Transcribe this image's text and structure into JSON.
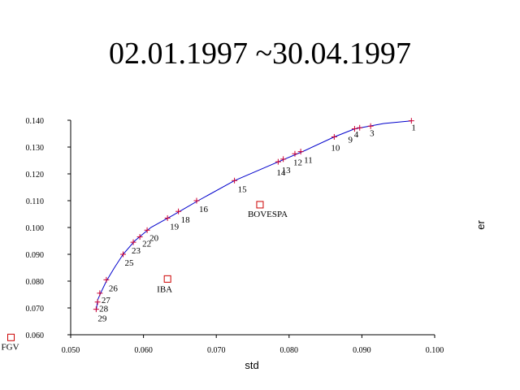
{
  "chart_data": {
    "type": "scatter",
    "title": "02.01.1997 ~30.04.1997",
    "xlabel": "std",
    "ylabel": "er",
    "xlim": [
      0.05,
      0.1
    ],
    "ylim": [
      0.06,
      0.14
    ],
    "x_ticks": [
      "0.050",
      "0.060",
      "0.070",
      "0.080",
      "0.090",
      "0.100"
    ],
    "y_ticks": [
      "0.060",
      "0.070",
      "0.080",
      "0.090",
      "0.100",
      "0.110",
      "0.120",
      "0.130",
      "0.140"
    ],
    "grid": false,
    "colors": {
      "frontier": "#0000cc",
      "points": "#cc0033",
      "assets": "#cc0000"
    },
    "frontier": [
      [
        0.0535,
        0.069
      ],
      [
        0.0537,
        0.073
      ],
      [
        0.0542,
        0.076
      ],
      [
        0.0549,
        0.08
      ],
      [
        0.056,
        0.085
      ],
      [
        0.0572,
        0.09
      ],
      [
        0.0588,
        0.095
      ],
      [
        0.061,
        0.1
      ],
      [
        0.064,
        0.1045
      ],
      [
        0.0675,
        0.11
      ],
      [
        0.0725,
        0.1175
      ],
      [
        0.0785,
        0.1245
      ],
      [
        0.082,
        0.1285
      ],
      [
        0.0862,
        0.1338
      ],
      [
        0.089,
        0.1368
      ],
      [
        0.093,
        0.1388
      ],
      [
        0.0968,
        0.1398
      ]
    ],
    "portfolios": [
      {
        "label": "1",
        "x": 0.0968,
        "y": 0.1398
      },
      {
        "label": "3",
        "x": 0.0912,
        "y": 0.1378
      },
      {
        "label": "4",
        "x": 0.0897,
        "y": 0.1372
      },
      {
        "label": "9",
        "x": 0.089,
        "y": 0.1368
      },
      {
        "label": "10",
        "x": 0.0862,
        "y": 0.1338
      },
      {
        "label": "11",
        "x": 0.0816,
        "y": 0.1283
      },
      {
        "label": "12",
        "x": 0.0808,
        "y": 0.1275
      },
      {
        "label": "13",
        "x": 0.0792,
        "y": 0.1255
      },
      {
        "label": "14",
        "x": 0.0785,
        "y": 0.1245
      },
      {
        "label": "15",
        "x": 0.0725,
        "y": 0.1175
      },
      {
        "label": "16",
        "x": 0.0673,
        "y": 0.11
      },
      {
        "label": "18",
        "x": 0.0648,
        "y": 0.106
      },
      {
        "label": "19",
        "x": 0.0633,
        "y": 0.1035
      },
      {
        "label": "20",
        "x": 0.0605,
        "y": 0.099
      },
      {
        "label": "22",
        "x": 0.0595,
        "y": 0.0965
      },
      {
        "label": "23",
        "x": 0.0586,
        "y": 0.0945
      },
      {
        "label": "25",
        "x": 0.0572,
        "y": 0.09
      },
      {
        "label": "26",
        "x": 0.0549,
        "y": 0.0805
      },
      {
        "label": "27",
        "x": 0.054,
        "y": 0.0755
      },
      {
        "label": "28",
        "x": 0.0537,
        "y": 0.0722
      },
      {
        "label": "29",
        "x": 0.0535,
        "y": 0.0695
      }
    ],
    "assets": [
      {
        "label": "BOVESPA",
        "x": 0.076,
        "y": 0.1085
      },
      {
        "label": "IBA",
        "x": 0.0633,
        "y": 0.0808
      },
      {
        "label": "FGV",
        "x": 0.0418,
        "y": 0.059
      }
    ]
  }
}
